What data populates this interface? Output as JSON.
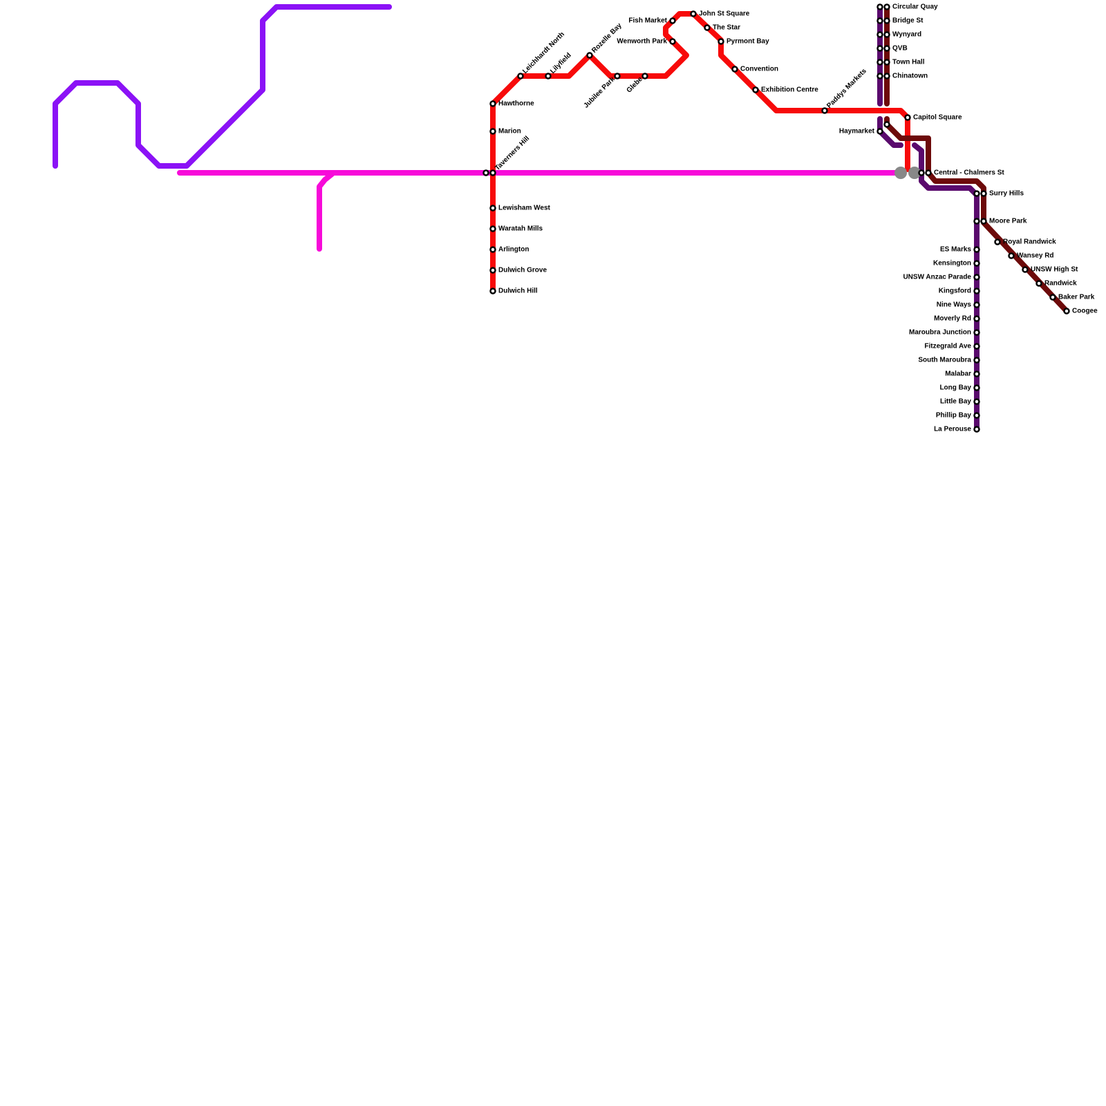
{
  "stations": [
    "Hawthorne",
    "Marion",
    "Taverners Hill",
    "Lewisham West",
    "Waratah Mills",
    "Arlington",
    "Dulwich Grove",
    "Dulwich Hill",
    "Leichhardt North",
    "Lilyfield",
    "Rozelle Bay",
    "Jubilee Park",
    "Glebe",
    "Fish Market",
    "Wenworth Park",
    "John St Square",
    "The Star",
    "Pyrmont Bay",
    "Convention",
    "Exhibition Centre",
    "Paddys Markets",
    "Capitol Square",
    "Central - Chalmers St",
    "Circular Quay",
    "Bridge St",
    "Wynyard",
    "QVB",
    "Town Hall",
    "Chinatown",
    "Haymarket",
    "Surry Hills",
    "Moore Park",
    "Royal Randwick",
    "Wansey Rd",
    "UNSW High St",
    "Randwick",
    "Baker Park",
    "Coogee",
    "ES Marks",
    "Kensington",
    "UNSW Anzac Parade",
    "Kingsford",
    "Nine Ways",
    "Moverly Rd",
    "Maroubra Junction",
    "Fitzegrald Ave",
    "South Maroubra",
    "Malabar",
    "Long Bay",
    "Little Bay",
    "Phillip Bay",
    "La Perouse"
  ]
}
